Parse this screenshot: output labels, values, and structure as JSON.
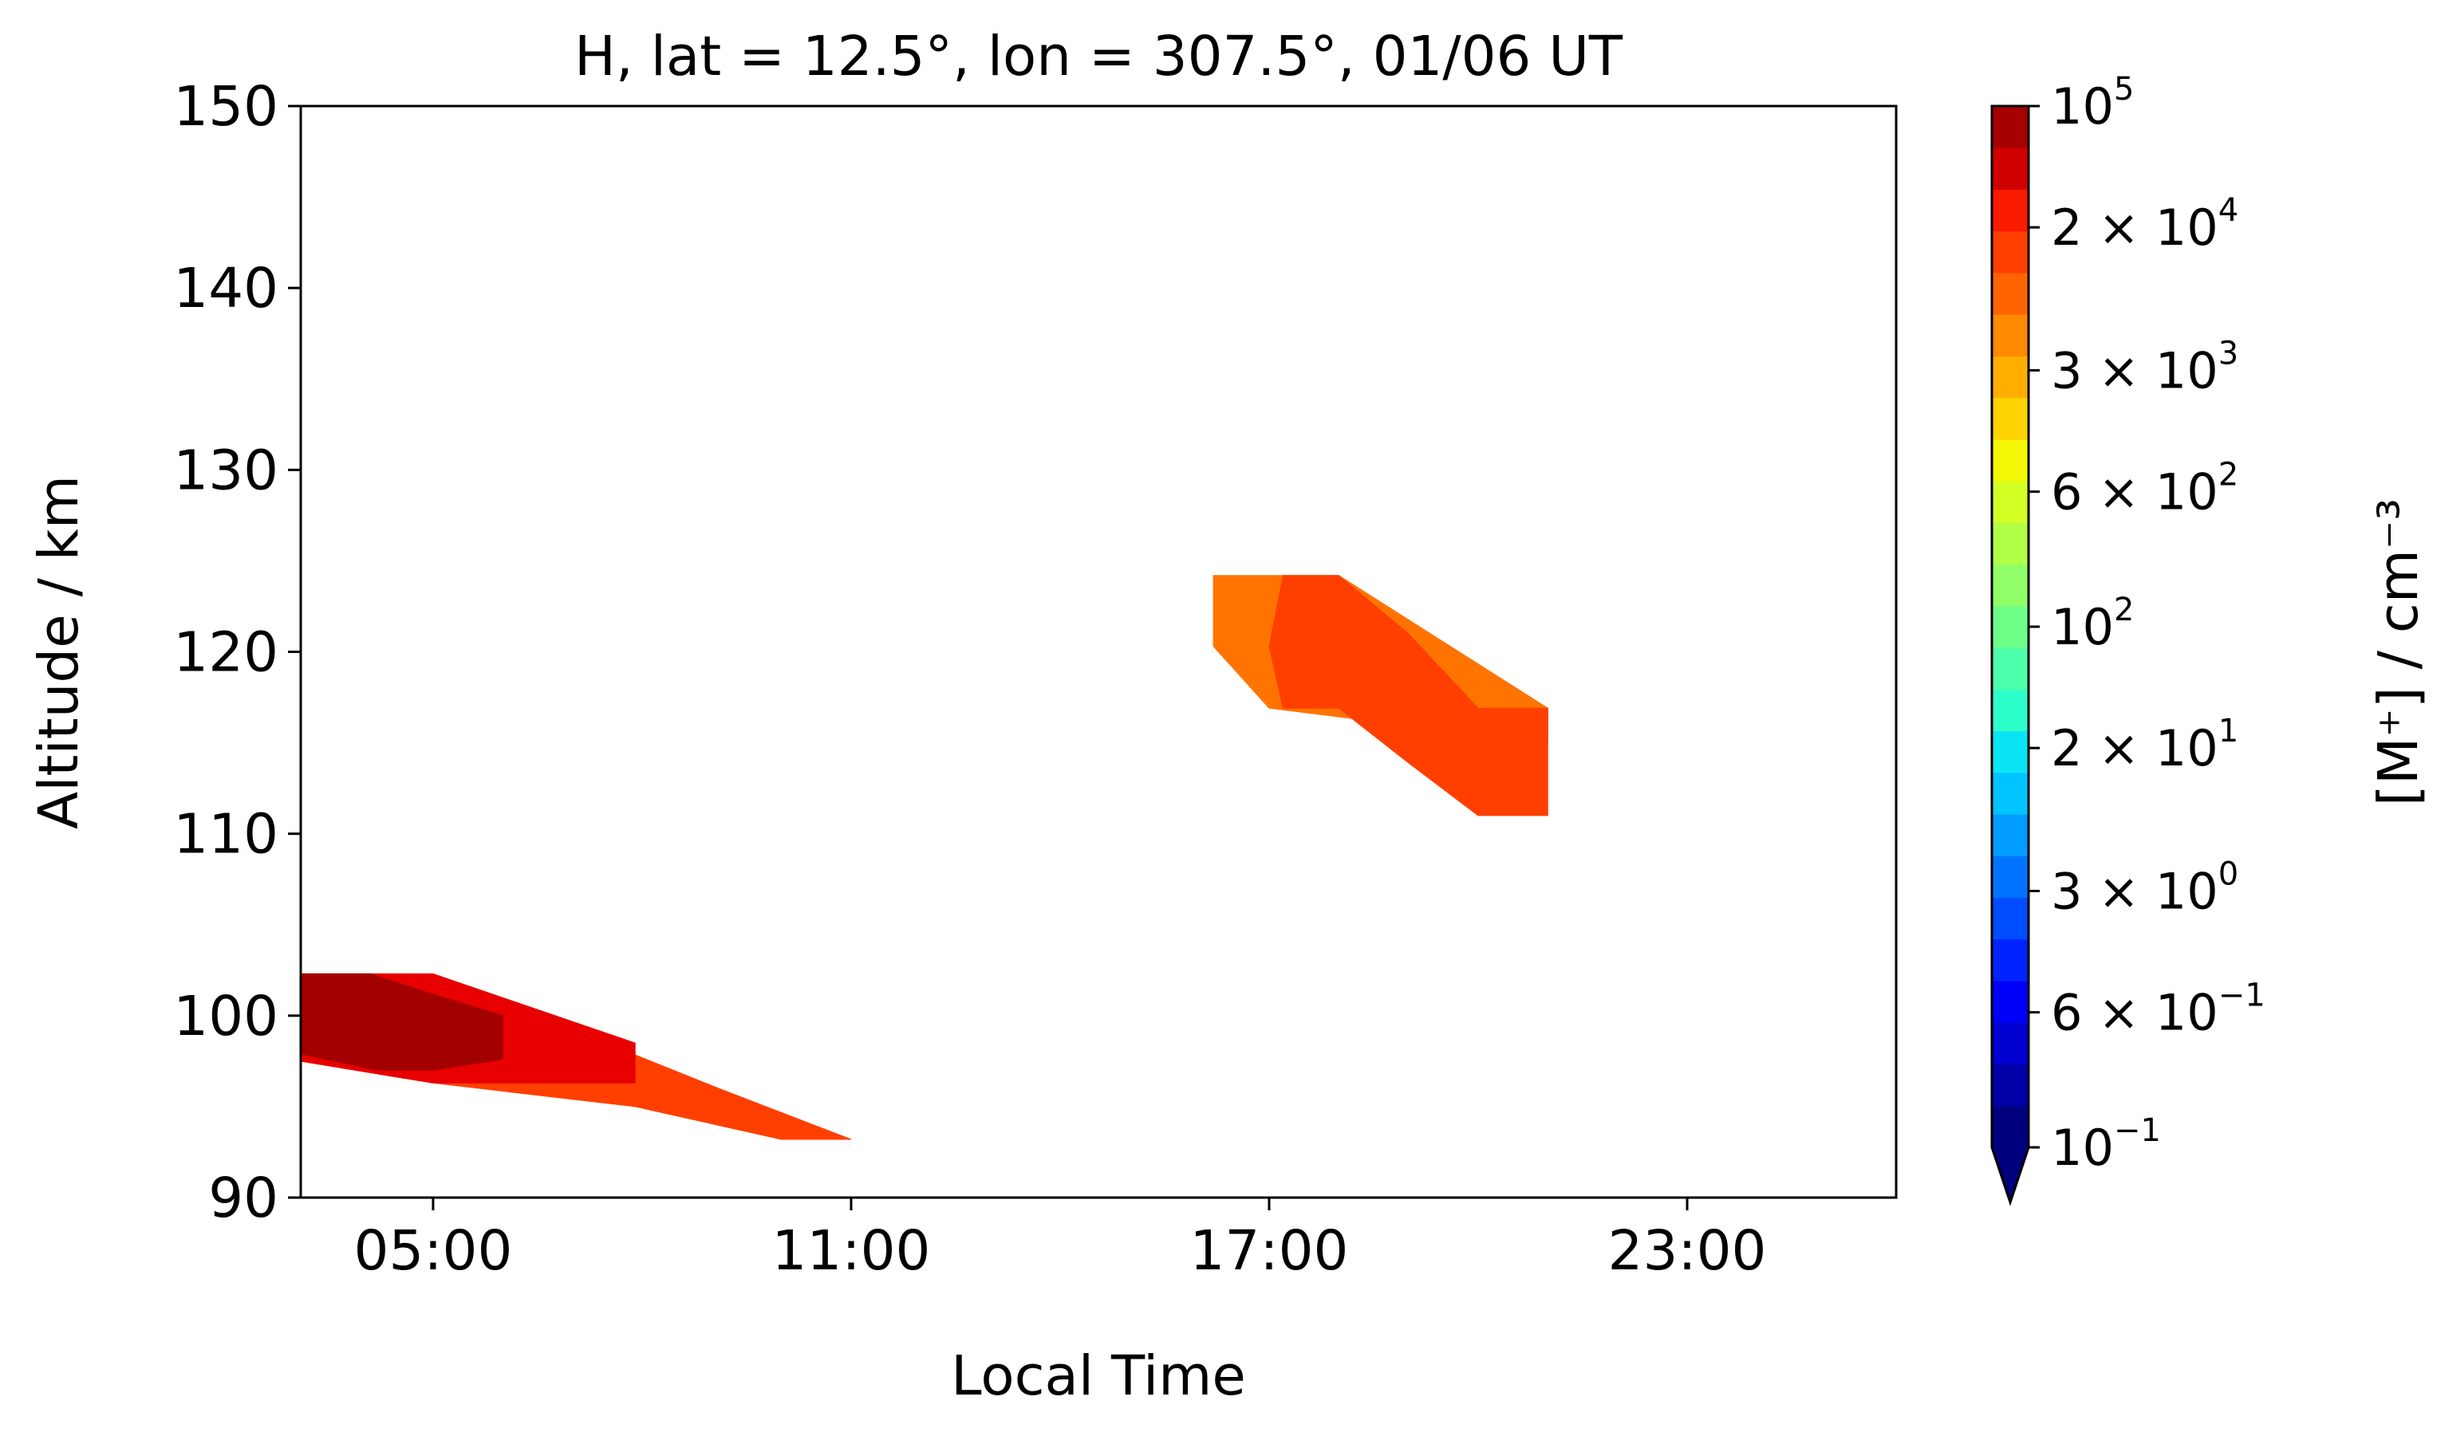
{
  "chart_data": {
    "type": "heatmap",
    "subtype": "filled-contour",
    "title": "H, lat = 12.5°, lon = 307.5°, 01/06 UT",
    "xlabel": "Local Time",
    "ylabel": "Altitude / km",
    "xlim_hours": [
      3.1,
      26.0
    ],
    "ylim": [
      90,
      150
    ],
    "xticks": [
      {
        "hour": 5,
        "label": "05:00"
      },
      {
        "hour": 11,
        "label": "11:00"
      },
      {
        "hour": 17,
        "label": "17:00"
      },
      {
        "hour": 23,
        "label": "23:00"
      }
    ],
    "yticks": [
      90,
      100,
      110,
      120,
      130,
      140,
      150
    ],
    "grid": false,
    "colorbar": {
      "label": "[M⁺] / cm⁻³",
      "scale": "log",
      "range": [
        0.1,
        100000
      ],
      "extend": "min",
      "colormap": "jet",
      "levels": [
        "#00007f",
        "#0000a8",
        "#0000d1",
        "#0000fa",
        "#0023ff",
        "#004cff",
        "#0074ff",
        "#009cff",
        "#00c4ff",
        "#0ae4f4",
        "#2cffca",
        "#4dffaa",
        "#6eff89",
        "#90ff67",
        "#b1ff46",
        "#d3ff24",
        "#f4f802",
        "#ffd300",
        "#ffae00",
        "#ff8900",
        "#ff6400",
        "#ff3f00",
        "#fa1a00",
        "#d10000",
        "#a80000"
      ],
      "ticks": [
        {
          "value": 0.1,
          "mantissa": "",
          "base": "10",
          "exp": "−1"
        },
        {
          "value": 0.6,
          "mantissa": "6 × ",
          "base": "10",
          "exp": "−1"
        },
        {
          "value": 3,
          "mantissa": "3 × ",
          "base": "10",
          "exp": "0"
        },
        {
          "value": 20,
          "mantissa": "2 × ",
          "base": "10",
          "exp": "1"
        },
        {
          "value": 100,
          "mantissa": "",
          "base": "10",
          "exp": "2"
        },
        {
          "value": 600,
          "mantissa": "6 × ",
          "base": "10",
          "exp": "2"
        },
        {
          "value": 3000,
          "mantissa": "3 × ",
          "base": "10",
          "exp": "3"
        },
        {
          "value": 20000,
          "mantissa": "2 × ",
          "base": "10",
          "exp": "4"
        },
        {
          "value": 100000,
          "mantissa": "",
          "base": "10",
          "exp": "5"
        }
      ]
    },
    "regions": [
      {
        "name": "low-altitude-layer",
        "bands": [
          {
            "color": "#ff3f00",
            "points": [
              [
                4.9,
                102.3
              ],
              [
                5.0,
                102.3
              ],
              [
                9.1,
                96.0
              ],
              [
                11.0,
                93.2
              ],
              [
                10.0,
                93.2
              ],
              [
                7.9,
                95.0
              ],
              [
                5.0,
                96.3
              ],
              [
                3.1,
                97.5
              ],
              [
                3.1,
                102.3
              ]
            ]
          },
          {
            "color": "#e80000",
            "points": [
              [
                5.0,
                102.3
              ],
              [
                7.9,
                98.5
              ],
              [
                7.9,
                96.3
              ],
              [
                5.0,
                96.3
              ],
              [
                3.1,
                97.5
              ],
              [
                3.1,
                102.3
              ]
            ]
          },
          {
            "color": "#a30000",
            "points": [
              [
                3.1,
                102.3
              ],
              [
                4.1,
                102.3
              ],
              [
                4.9,
                101.3
              ],
              [
                6.0,
                100.0
              ],
              [
                6.0,
                97.6
              ],
              [
                5.0,
                97.0
              ],
              [
                4.2,
                97.0
              ],
              [
                3.1,
                97.9
              ]
            ]
          }
        ]
      },
      {
        "name": "high-altitude-layer",
        "bands": [
          {
            "color": "#ff7400",
            "points": [
              [
                16.2,
                124.2
              ],
              [
                18.0,
                124.2
              ],
              [
                21.0,
                116.9
              ],
              [
                21.0,
                115.0
              ],
              [
                17.0,
                116.9
              ],
              [
                16.2,
                120.3
              ]
            ]
          },
          {
            "color": "#ff3f00",
            "points": [
              [
                17.2,
                124.2
              ],
              [
                18.0,
                124.2
              ],
              [
                19.0,
                121.0
              ],
              [
                20.0,
                116.9
              ],
              [
                21.0,
                116.9
              ],
              [
                21.0,
                111.0
              ],
              [
                20.0,
                111.0
              ],
              [
                19.0,
                113.9
              ],
              [
                18.0,
                116.9
              ],
              [
                17.2,
                116.9
              ],
              [
                17.0,
                120.3
              ]
            ]
          }
        ]
      }
    ]
  }
}
